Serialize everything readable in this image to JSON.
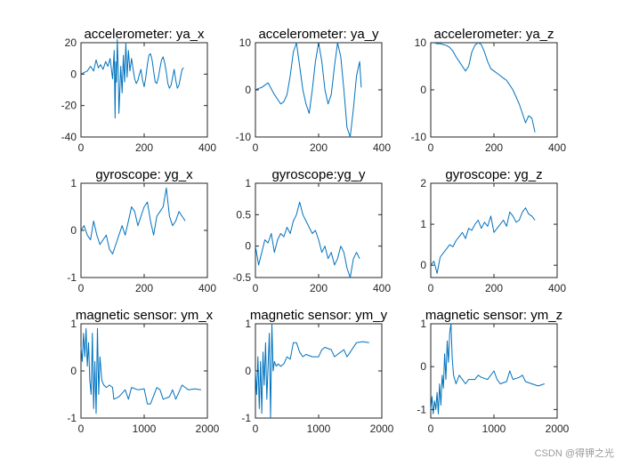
{
  "colors": {
    "series": "#0072BD",
    "axes": "#262626"
  },
  "watermark": "CSDN @得钾之光",
  "chart_data": [
    {
      "type": "line",
      "title": "accelerometer: ya_x",
      "xlim": [
        0,
        400
      ],
      "ylim": [
        -40,
        20
      ],
      "xticks": [
        0,
        200,
        400
      ],
      "yticks": [
        -40,
        -20,
        0,
        20
      ],
      "series": [
        {
          "x": [
            0,
            10,
            20,
            30,
            40,
            48,
            55,
            62,
            70,
            78,
            85,
            92,
            100,
            105,
            108,
            110,
            112,
            115,
            118,
            120,
            123,
            126,
            130,
            134,
            138,
            142,
            146,
            150,
            155,
            160,
            165,
            170,
            175,
            180,
            185,
            190,
            195,
            200,
            205,
            210,
            215,
            220,
            225,
            230,
            235,
            240,
            245,
            250,
            255,
            260,
            265,
            270,
            275,
            280,
            285,
            290,
            295,
            300,
            305,
            310,
            315,
            320,
            325
          ],
          "y": [
            0,
            1,
            2,
            5,
            2,
            9,
            4,
            6,
            3,
            8,
            5,
            10,
            -3,
            15,
            -28,
            8,
            -5,
            22,
            2,
            -25,
            -10,
            5,
            -12,
            12,
            -5,
            20,
            -2,
            15,
            2,
            10,
            3,
            -3,
            -6,
            -4,
            0,
            3,
            -4,
            -8,
            -2,
            6,
            12,
            13,
            9,
            2,
            -5,
            -6,
            -2,
            4,
            9,
            11,
            7,
            1,
            -6,
            -9,
            -7,
            -2,
            3,
            -4,
            -9,
            -7,
            -2,
            3,
            4
          ]
        }
      ]
    },
    {
      "type": "line",
      "title": "accelerometer: ya_y",
      "xlim": [
        0,
        400
      ],
      "ylim": [
        -10,
        10
      ],
      "xticks": [
        0,
        200,
        400
      ],
      "yticks": [
        -10,
        0,
        10
      ],
      "series": [
        {
          "x": [
            0,
            10,
            20,
            30,
            40,
            50,
            60,
            70,
            80,
            90,
            100,
            110,
            120,
            130,
            140,
            150,
            160,
            170,
            180,
            190,
            200,
            210,
            220,
            230,
            240,
            250,
            260,
            270,
            280,
            290,
            300,
            310,
            320,
            330,
            335
          ],
          "y": [
            0,
            0.3,
            0.5,
            1,
            1.5,
            0.2,
            -1,
            -2,
            -3,
            -2.5,
            -1,
            3,
            8,
            10,
            5,
            0,
            -3,
            -5,
            0,
            6,
            10,
            6,
            0,
            -3,
            -1,
            5,
            10,
            7,
            0,
            -8,
            -10,
            -4,
            3,
            6,
            0.5
          ]
        }
      ]
    },
    {
      "type": "line",
      "title": "accelerometer: ya_z",
      "xlim": [
        0,
        400
      ],
      "ylim": [
        -10,
        10
      ],
      "xticks": [
        0,
        200,
        400
      ],
      "yticks": [
        -10,
        0,
        10
      ],
      "series": [
        {
          "x": [
            0,
            10,
            20,
            30,
            40,
            50,
            60,
            70,
            80,
            90,
            100,
            110,
            120,
            130,
            140,
            150,
            160,
            170,
            180,
            190,
            200,
            210,
            220,
            230,
            240,
            250,
            260,
            270,
            280,
            290,
            300,
            310,
            320,
            330
          ],
          "y": [
            10,
            10,
            9.8,
            9.8,
            9.6,
            9.4,
            9,
            8.2,
            7,
            6,
            5,
            4,
            5,
            8,
            9.5,
            10,
            9.6,
            8,
            6,
            4.5,
            4,
            3.5,
            3,
            2.5,
            2,
            1,
            0,
            -1.5,
            -3,
            -5,
            -7,
            -5.5,
            -6,
            -9
          ]
        }
      ]
    },
    {
      "type": "line",
      "title": "gyroscope: yg_x",
      "xlim": [
        0,
        400
      ],
      "ylim": [
        -1,
        1
      ],
      "xticks": [
        0,
        200,
        400
      ],
      "yticks": [
        -1,
        0,
        1
      ],
      "series": [
        {
          "x": [
            0,
            10,
            20,
            30,
            40,
            50,
            60,
            70,
            80,
            90,
            100,
            110,
            120,
            130,
            140,
            150,
            160,
            170,
            180,
            190,
            200,
            210,
            220,
            230,
            240,
            250,
            260,
            270,
            280,
            290,
            300,
            310,
            320,
            330
          ],
          "y": [
            0,
            0.1,
            -0.1,
            -0.2,
            0.2,
            -0.1,
            -0.3,
            -0.2,
            -0.1,
            -0.4,
            -0.5,
            -0.3,
            -0.1,
            0.1,
            -0.1,
            0.2,
            0.5,
            0.4,
            0.1,
            0.3,
            0.5,
            0.6,
            0.2,
            -0.1,
            0.3,
            0.4,
            0.5,
            0.9,
            0.3,
            0.1,
            0.2,
            0.4,
            0.3,
            0.2
          ]
        }
      ]
    },
    {
      "type": "line",
      "title": "gyroscope:yg_y",
      "xlim": [
        0,
        400
      ],
      "ylim": [
        -0.5,
        1
      ],
      "xticks": [
        0,
        200,
        400
      ],
      "yticks": [
        -0.5,
        0,
        0.5,
        1
      ],
      "series": [
        {
          "x": [
            0,
            10,
            20,
            30,
            40,
            50,
            60,
            70,
            80,
            90,
            100,
            110,
            120,
            130,
            140,
            150,
            160,
            170,
            180,
            190,
            200,
            210,
            220,
            230,
            240,
            250,
            260,
            270,
            280,
            290,
            300,
            310,
            320,
            330
          ],
          "y": [
            0,
            -0.3,
            -0.1,
            0.1,
            0.05,
            0.2,
            -0.1,
            0.1,
            0.2,
            0.15,
            0.3,
            0.2,
            0.4,
            0.5,
            0.7,
            0.5,
            0.4,
            0.3,
            0.2,
            0.25,
            0.1,
            -0.1,
            0,
            -0.2,
            -0.1,
            -0.3,
            -0.2,
            0,
            -0.1,
            -0.35,
            -0.5,
            -0.2,
            -0.1,
            -0.2
          ]
        }
      ]
    },
    {
      "type": "line",
      "title": "gyroscope: yg_z",
      "xlim": [
        0,
        400
      ],
      "ylim": [
        -0.3,
        2
      ],
      "xticks": [
        0,
        200,
        400
      ],
      "yticks": [
        0,
        1,
        2
      ],
      "series": [
        {
          "x": [
            0,
            10,
            20,
            30,
            40,
            50,
            60,
            70,
            80,
            90,
            100,
            110,
            120,
            130,
            140,
            150,
            160,
            170,
            180,
            190,
            200,
            210,
            220,
            230,
            240,
            250,
            260,
            270,
            280,
            290,
            300,
            310,
            320,
            330
          ],
          "y": [
            0,
            0.1,
            -0.2,
            0.2,
            0.3,
            0.4,
            0.5,
            0.45,
            0.6,
            0.7,
            0.8,
            0.65,
            0.9,
            0.85,
            1,
            1.1,
            0.9,
            1.05,
            0.95,
            1.2,
            0.8,
            0.9,
            1,
            1.1,
            0.95,
            1.3,
            1.2,
            1.05,
            1.1,
            1.3,
            1.4,
            1.25,
            1.2,
            1.1
          ]
        }
      ]
    },
    {
      "type": "line",
      "title": "magnetic sensor: ym_x",
      "xlim": [
        0,
        2000
      ],
      "ylim": [
        -1,
        1
      ],
      "xticks": [
        0,
        1000,
        2000
      ],
      "yticks": [
        -1,
        0,
        1
      ],
      "series": [
        {
          "x": [
            0,
            20,
            40,
            60,
            80,
            100,
            120,
            140,
            160,
            180,
            200,
            220,
            240,
            260,
            280,
            300,
            330,
            360,
            400,
            450,
            500,
            520,
            600,
            700,
            750,
            800,
            900,
            1000,
            1050,
            1100,
            1200,
            1250,
            1300,
            1400,
            1450,
            1500,
            1600,
            1650,
            1700,
            1800,
            1900
          ],
          "y": [
            0.5,
            0.2,
            0.8,
            0.3,
            0.9,
            0.1,
            0.6,
            -0.2,
            -0.5,
            0.8,
            -0.8,
            0.2,
            -0.9,
            0.9,
            -0.5,
            0.3,
            -0.2,
            -0.3,
            -0.35,
            -0.3,
            -0.35,
            -0.6,
            -0.55,
            -0.4,
            -0.6,
            -0.35,
            -0.4,
            -0.38,
            -0.7,
            -0.7,
            -0.35,
            -0.4,
            -0.6,
            -0.55,
            -0.4,
            -0.6,
            -0.3,
            -0.35,
            -0.4,
            -0.38,
            -0.4
          ]
        }
      ]
    },
    {
      "type": "line",
      "title": "magnetic sensor: ym_y",
      "xlim": [
        0,
        2000
      ],
      "ylim": [
        -1,
        1
      ],
      "xticks": [
        0,
        1000,
        2000
      ],
      "yticks": [
        -1,
        0,
        1
      ],
      "series": [
        {
          "x": [
            0,
            20,
            40,
            60,
            80,
            100,
            120,
            140,
            160,
            180,
            200,
            220,
            240,
            260,
            280,
            300,
            330,
            360,
            400,
            450,
            500,
            550,
            600,
            650,
            700,
            750,
            800,
            900,
            1000,
            1050,
            1100,
            1200,
            1250,
            1300,
            1400,
            1450,
            1500,
            1600,
            1700,
            1800
          ],
          "y": [
            0,
            -0.5,
            0.3,
            -0.8,
            0.2,
            -0.9,
            0.4,
            -0.3,
            0.6,
            -0.6,
            0.1,
            0.8,
            -1,
            1,
            0,
            0.2,
            0.1,
            0.15,
            0.1,
            0.15,
            0.3,
            0.25,
            0.6,
            0.6,
            0.4,
            0.3,
            0.35,
            0.3,
            0.3,
            0.45,
            0.5,
            0.45,
            0.3,
            0.35,
            0.45,
            0.3,
            0.4,
            0.6,
            0.62,
            0.6
          ]
        }
      ]
    },
    {
      "type": "line",
      "title": "magnetic sensor: ym_z",
      "xlim": [
        0,
        2000
      ],
      "ylim": [
        -1.2,
        1
      ],
      "xticks": [
        0,
        1000,
        2000
      ],
      "yticks": [
        -1,
        0,
        1
      ],
      "series": [
        {
          "x": [
            0,
            20,
            40,
            60,
            80,
            100,
            120,
            140,
            160,
            180,
            200,
            220,
            240,
            260,
            280,
            300,
            320,
            340,
            360,
            400,
            450,
            500,
            550,
            600,
            700,
            750,
            800,
            900,
            1000,
            1050,
            1100,
            1200,
            1250,
            1300,
            1400,
            1450,
            1500,
            1600,
            1700,
            1800
          ],
          "y": [
            -1,
            -0.7,
            -1.1,
            -0.8,
            -1,
            -0.6,
            -1.1,
            -0.4,
            -0.9,
            -0.2,
            -0.5,
            0.3,
            -0.3,
            0.6,
            0.1,
            0.8,
            1,
            0.2,
            -0.2,
            -0.4,
            -0.2,
            -0.3,
            -0.4,
            -0.3,
            -0.3,
            -0.2,
            -0.25,
            -0.3,
            -0.1,
            -0.3,
            -0.4,
            -0.35,
            -0.1,
            -0.3,
            -0.25,
            -0.2,
            -0.35,
            -0.4,
            -0.45,
            -0.4
          ]
        }
      ]
    }
  ]
}
